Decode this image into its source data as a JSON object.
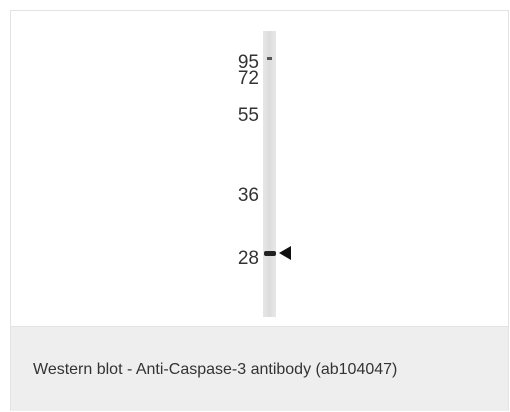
{
  "blot": {
    "markers": [
      95,
      72,
      55,
      36,
      28
    ]
  },
  "caption": "Western blot - Anti-Caspase-3 antibody (ab104047)"
}
